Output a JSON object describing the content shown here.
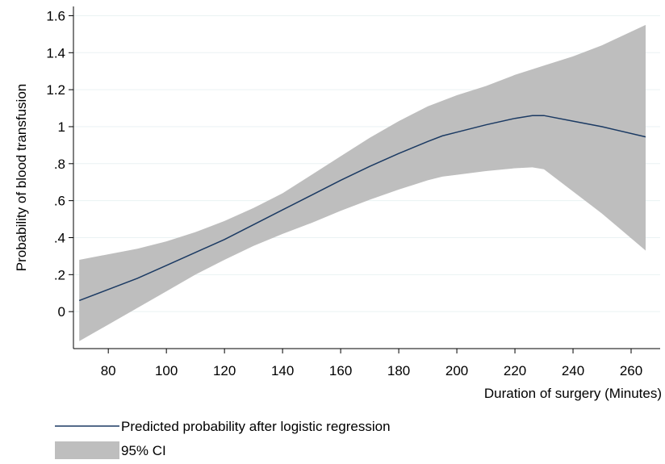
{
  "chart_data": {
    "type": "line",
    "title": "",
    "xlabel": "Duration of surgery (Minutes)",
    "ylabel": "Probability of blood transfusion",
    "xlim": [
      68,
      270
    ],
    "ylim": [
      -0.2,
      1.65
    ],
    "x_ticks": [
      80,
      100,
      120,
      140,
      160,
      180,
      200,
      220,
      240,
      260
    ],
    "y_ticks": [
      0,
      0.2,
      0.4,
      0.6,
      0.8,
      1.0,
      1.2,
      1.4,
      1.6
    ],
    "y_tick_labels": [
      "0",
      ".2",
      ".4",
      ".6",
      ".8",
      "1",
      "1.2",
      "1.4",
      "1.6"
    ],
    "grid": true,
    "legend_placement": "bottom-left",
    "series": [
      {
        "name": "Predicted probability after logistic regression",
        "kind": "line",
        "color": "#1b3a63",
        "x": [
          70,
          80,
          90,
          100,
          110,
          120,
          130,
          140,
          150,
          160,
          170,
          180,
          190,
          195,
          200,
          210,
          220,
          226,
          230,
          240,
          250,
          265
        ],
        "y": [
          0.06,
          0.12,
          0.18,
          0.25,
          0.32,
          0.39,
          0.47,
          0.55,
          0.63,
          0.71,
          0.785,
          0.855,
          0.92,
          0.95,
          0.97,
          1.01,
          1.045,
          1.06,
          1.06,
          1.03,
          1.0,
          0.945
        ]
      },
      {
        "name": "95% CI",
        "kind": "band",
        "color": "#bebebe",
        "x": [
          70,
          80,
          90,
          100,
          110,
          120,
          130,
          140,
          150,
          160,
          170,
          180,
          190,
          195,
          200,
          210,
          220,
          226,
          230,
          240,
          250,
          265
        ],
        "upper": [
          0.28,
          0.31,
          0.34,
          0.38,
          0.43,
          0.49,
          0.56,
          0.64,
          0.74,
          0.84,
          0.94,
          1.03,
          1.11,
          1.14,
          1.17,
          1.22,
          1.28,
          1.31,
          1.33,
          1.38,
          1.44,
          1.55
        ],
        "lower": [
          -0.16,
          -0.07,
          0.02,
          0.11,
          0.2,
          0.28,
          0.355,
          0.42,
          0.48,
          0.545,
          0.605,
          0.66,
          0.71,
          0.73,
          0.74,
          0.76,
          0.775,
          0.78,
          0.77,
          0.65,
          0.53,
          0.33
        ]
      }
    ]
  }
}
